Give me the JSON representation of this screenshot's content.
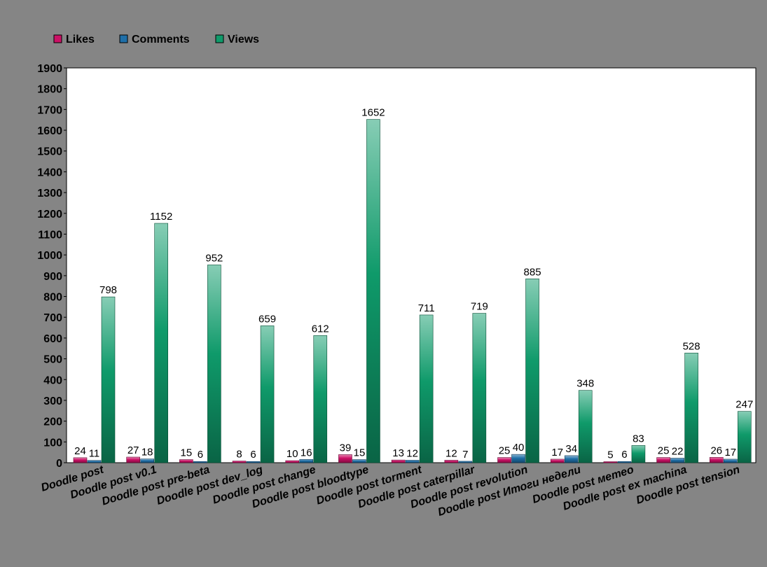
{
  "chart_data": {
    "type": "bar",
    "title": "",
    "xlabel": "",
    "ylabel": "",
    "ylim": [
      0,
      1900
    ],
    "ytick_step": 100,
    "grid": false,
    "legend_position": "top-left",
    "categories": [
      "Doodle post",
      "Doodle post v0.1",
      "Doodle post pre-beta",
      "Doodle post dev_log",
      "Doodle post change",
      "Doodle post bloodtype",
      "Doodle post torment",
      "Doodle post caterpillar",
      "Doodle post revolution",
      "Doodle post Итоги недели",
      "Doodle post метео",
      "Doodle post ex machina",
      "Doodle post tension"
    ],
    "series": [
      {
        "name": "Likes",
        "color": "#cc1166",
        "values": [
          24,
          27,
          15,
          8,
          10,
          39,
          13,
          12,
          25,
          17,
          5,
          25,
          26
        ]
      },
      {
        "name": "Comments",
        "color": "#1f6fa8",
        "values": [
          11,
          18,
          6,
          6,
          16,
          15,
          12,
          7,
          40,
          34,
          6,
          22,
          17
        ]
      },
      {
        "name": "Views",
        "color": "#0f9a6a",
        "values": [
          798,
          1152,
          952,
          659,
          612,
          1652,
          711,
          719,
          885,
          348,
          83,
          528,
          247
        ]
      }
    ]
  }
}
